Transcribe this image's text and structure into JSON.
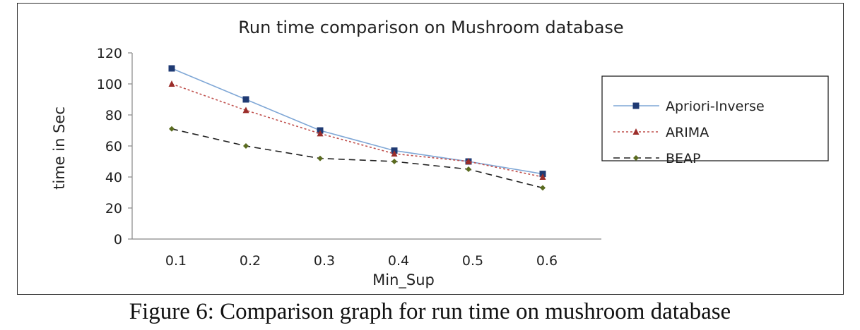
{
  "caption": "Figure 6: Comparison graph for run time on mushroom database",
  "chart_data": {
    "type": "line",
    "title": "Run time comparison on Mushroom database",
    "xlabel": "Min_Sup",
    "ylabel": "time in Sec",
    "categories": [
      "0.1",
      "0.2",
      "0.3",
      "0.4",
      "0.5",
      "0.6"
    ],
    "ylim": [
      0,
      120
    ],
    "yticks": [
      "0",
      "20",
      "40",
      "60",
      "80",
      "100",
      "120"
    ],
    "grid": false,
    "legend_position": "right",
    "series": [
      {
        "name": "Apriori-Inverse",
        "values": [
          110,
          90,
          70,
          57,
          50,
          42
        ],
        "color": "#7fa7d6",
        "marker": "square",
        "marker_color": "#1f3a73",
        "dash": "solid"
      },
      {
        "name": "ARIMA",
        "values": [
          100,
          83,
          68,
          55,
          50,
          40
        ],
        "color": "#c0504d",
        "marker": "triangle",
        "marker_color": "#9b2d2a",
        "dash": "dotted"
      },
      {
        "name": "BEAP",
        "values": [
          71,
          60,
          52,
          50,
          45,
          33
        ],
        "color": "#222222",
        "marker": "diamond",
        "marker_color": "#5a6b1f",
        "dash": "dashed"
      }
    ]
  }
}
